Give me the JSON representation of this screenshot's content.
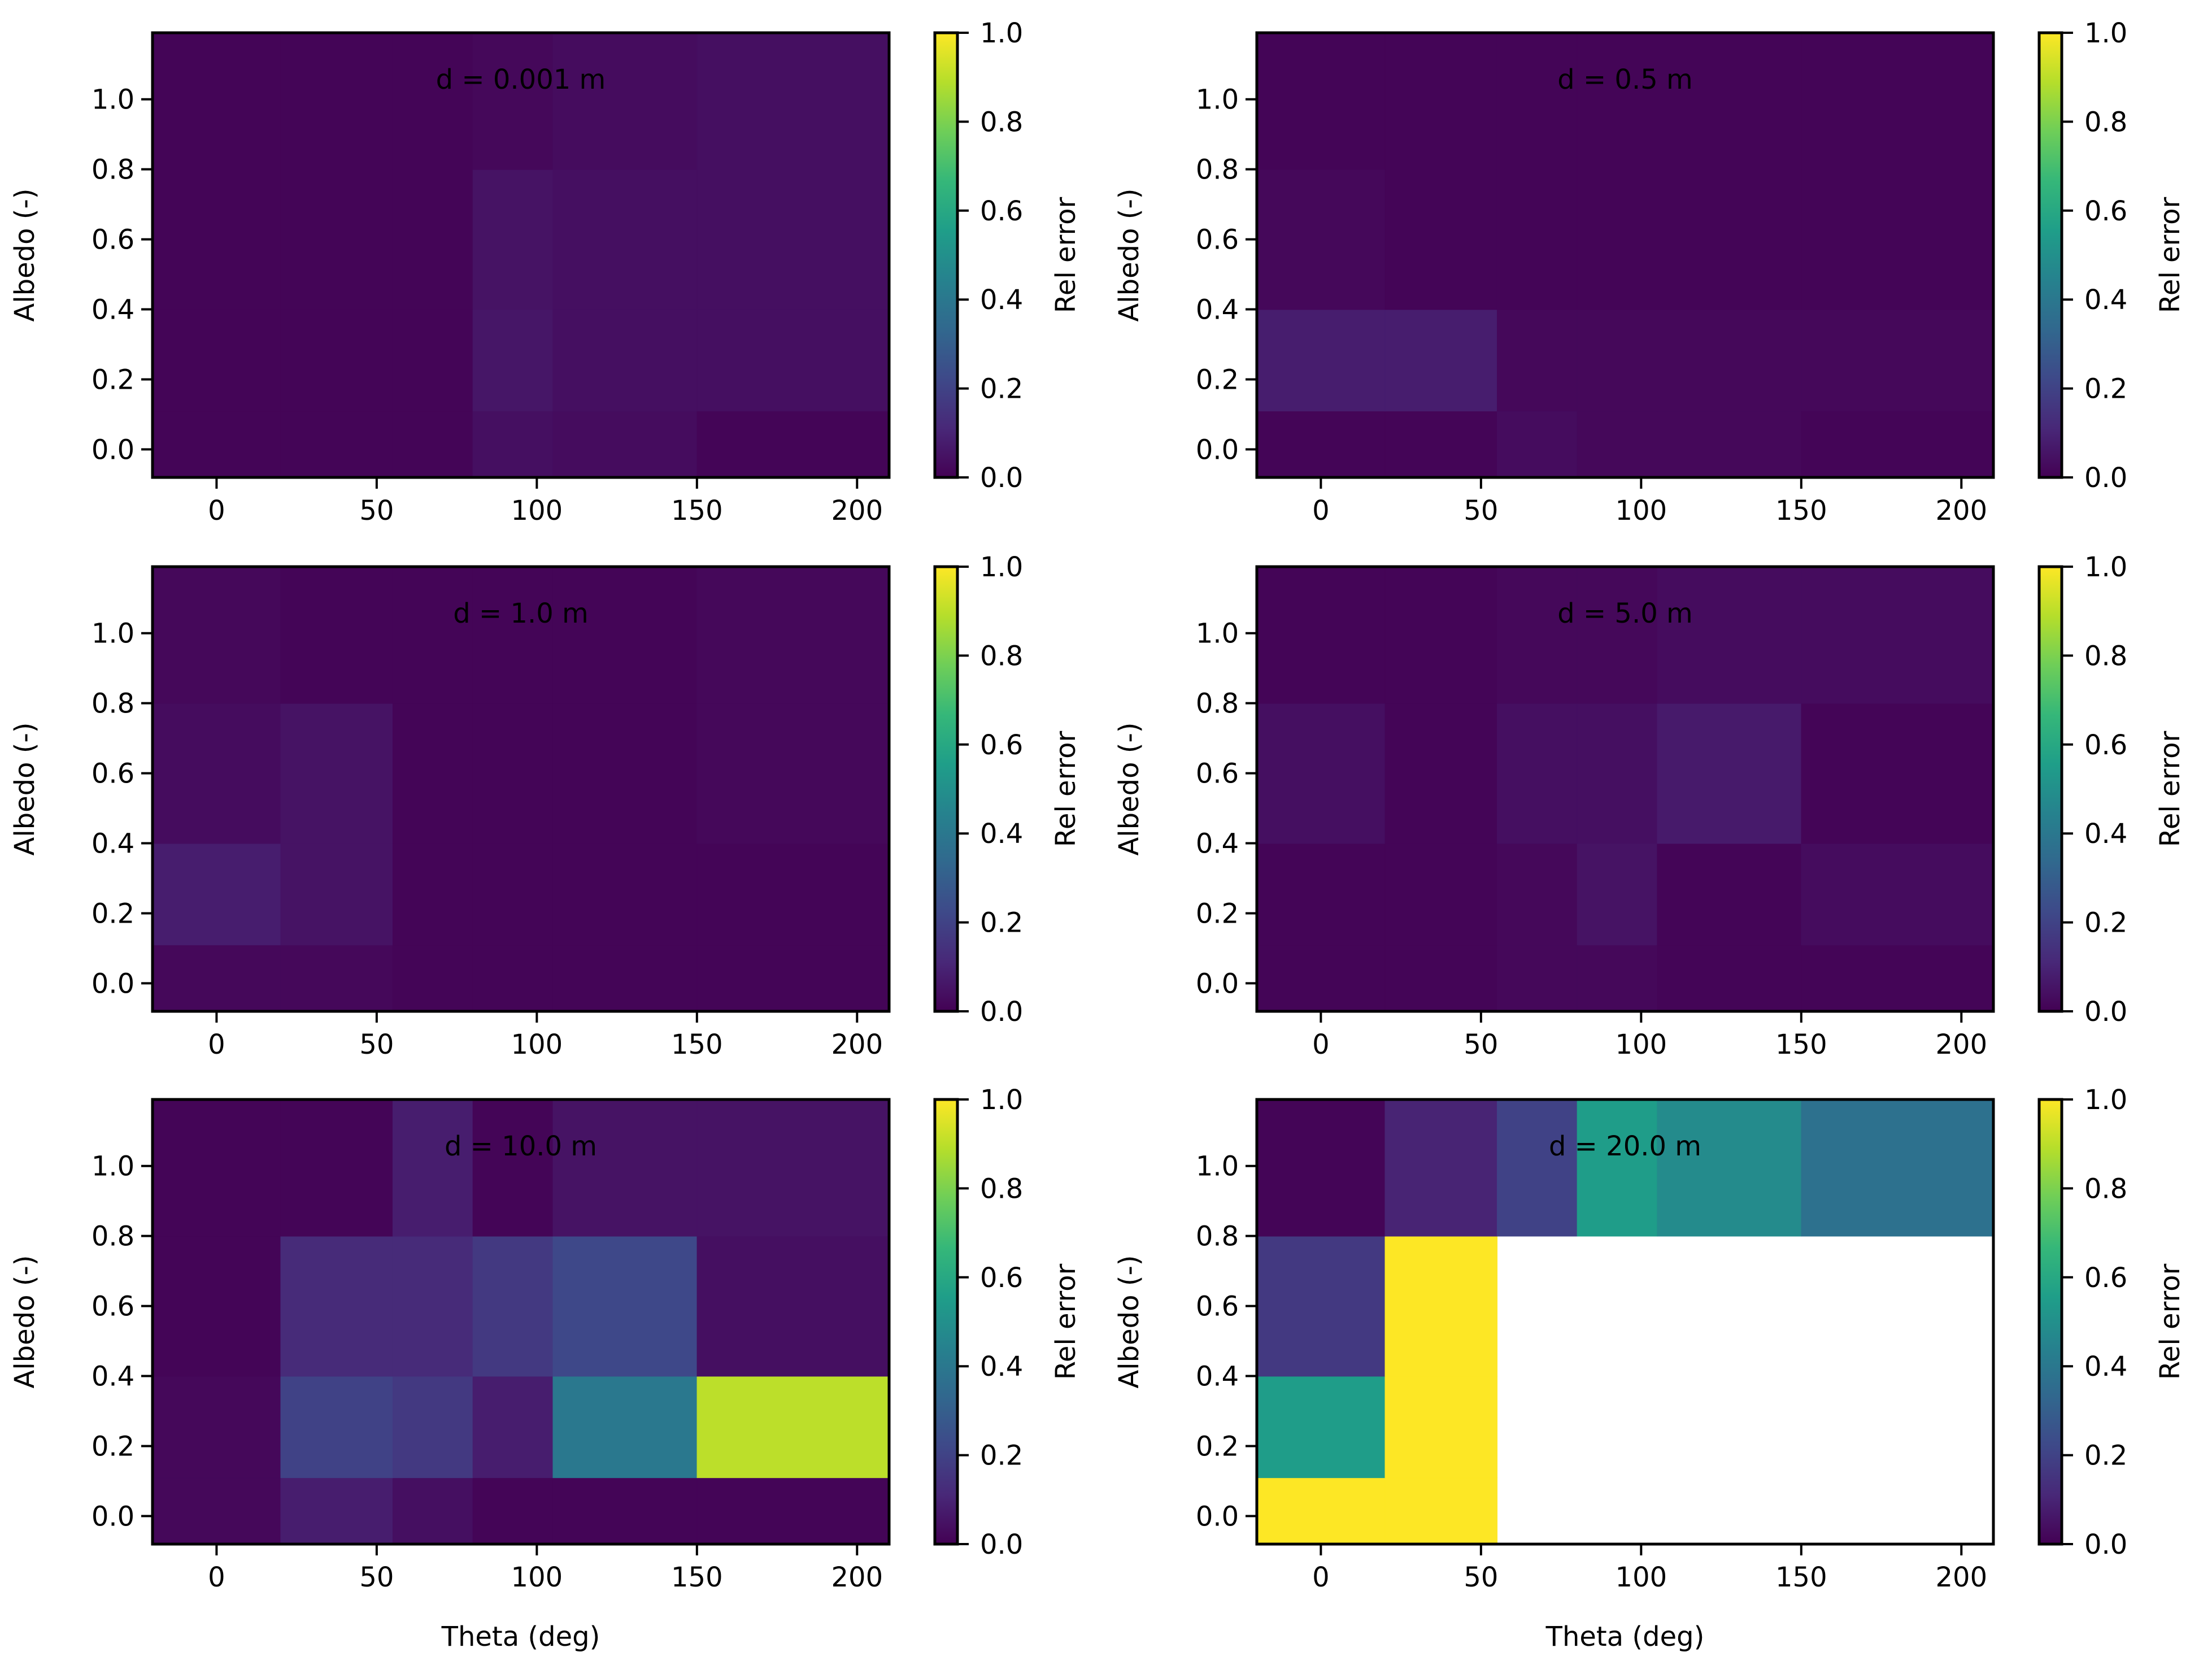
{
  "figure": {
    "xlabel": "Theta (deg)",
    "ylabel": "Albedo (-)",
    "colorbar_label": "Rel error",
    "colorbar_ticks": [
      "0.0",
      "0.2",
      "0.4",
      "0.6",
      "0.8",
      "1.0"
    ],
    "colormap": [
      "#440154",
      "#482878",
      "#3e4989",
      "#31688e",
      "#26828e",
      "#1f9e89",
      "#35b779",
      "#6ece58",
      "#b5de2b",
      "#fde725"
    ],
    "nodata_color": "#ffffff",
    "x_ticks": [
      "0",
      "50",
      "100",
      "150",
      "200"
    ],
    "y_ticks": [
      "0.0",
      "0.2",
      "0.4",
      "0.6",
      "0.8",
      "1.0"
    ]
  },
  "chart_data": [
    {
      "type": "heatmap",
      "title": "d = 0.001 m",
      "xlabel": "Theta (deg)",
      "ylabel": "Albedo (-)",
      "colorbar_label": "Rel error",
      "xlim": [
        -20,
        210
      ],
      "ylim": [
        -0.08,
        1.19
      ],
      "clim": [
        0,
        1
      ],
      "x_edges": [
        -20,
        20,
        55,
        80,
        105,
        150,
        210
      ],
      "y_edges": [
        -0.08,
        0.11,
        0.4,
        0.8,
        1.19
      ],
      "z": [
        [
          0.01,
          0.01,
          0.01,
          0.04,
          0.03,
          0.01
        ],
        [
          0.01,
          0.01,
          0.01,
          0.06,
          0.04,
          0.04
        ],
        [
          0.01,
          0.01,
          0.01,
          0.05,
          0.04,
          0.04
        ],
        [
          0.01,
          0.01,
          0.01,
          0.02,
          0.03,
          0.04
        ]
      ]
    },
    {
      "type": "heatmap",
      "title": "d = 0.5 m",
      "xlabel": "Theta (deg)",
      "ylabel": "Albedo (-)",
      "colorbar_label": "Rel error",
      "xlim": [
        -20,
        210
      ],
      "ylim": [
        -0.08,
        1.19
      ],
      "clim": [
        0,
        1
      ],
      "x_edges": [
        -20,
        20,
        55,
        80,
        105,
        150,
        210
      ],
      "y_edges": [
        -0.08,
        0.11,
        0.4,
        0.8,
        1.19
      ],
      "z": [
        [
          0.01,
          0.01,
          0.03,
          0.02,
          0.02,
          0.01
        ],
        [
          0.08,
          0.08,
          0.02,
          0.02,
          0.02,
          0.02
        ],
        [
          0.02,
          0.01,
          0.01,
          0.01,
          0.01,
          0.01
        ],
        [
          0.01,
          0.01,
          0.01,
          0.01,
          0.01,
          0.01
        ]
      ]
    },
    {
      "type": "heatmap",
      "title": "d = 1.0 m",
      "xlabel": "Theta (deg)",
      "ylabel": "Albedo (-)",
      "colorbar_label": "Rel error",
      "xlim": [
        -20,
        210
      ],
      "ylim": [
        -0.08,
        1.19
      ],
      "clim": [
        0,
        1
      ],
      "x_edges": [
        -20,
        20,
        55,
        80,
        105,
        150,
        210
      ],
      "y_edges": [
        -0.08,
        0.11,
        0.4,
        0.8,
        1.19
      ],
      "z": [
        [
          0.02,
          0.02,
          0.01,
          0.01,
          0.01,
          0.01
        ],
        [
          0.08,
          0.05,
          0.01,
          0.01,
          0.01,
          0.01
        ],
        [
          0.03,
          0.05,
          0.01,
          0.01,
          0.01,
          0.02
        ],
        [
          0.02,
          0.01,
          0.01,
          0.01,
          0.01,
          0.02
        ]
      ]
    },
    {
      "type": "heatmap",
      "title": "d = 5.0 m",
      "xlabel": "Theta (deg)",
      "ylabel": "Albedo (-)",
      "colorbar_label": "Rel error",
      "xlim": [
        -20,
        210
      ],
      "ylim": [
        -0.08,
        1.19
      ],
      "clim": [
        0,
        1
      ],
      "x_edges": [
        -20,
        20,
        55,
        80,
        105,
        150,
        210
      ],
      "y_edges": [
        -0.08,
        0.11,
        0.4,
        0.8,
        1.19
      ],
      "z": [
        [
          0.01,
          0.01,
          0.02,
          0.02,
          0.01,
          0.01
        ],
        [
          0.01,
          0.01,
          0.02,
          0.05,
          0.01,
          0.03
        ],
        [
          0.04,
          0.01,
          0.04,
          0.04,
          0.07,
          0.01
        ],
        [
          0.01,
          0.01,
          0.02,
          0.02,
          0.03,
          0.03
        ]
      ]
    },
    {
      "type": "heatmap",
      "title": "d = 10.0 m",
      "xlabel": "Theta (deg)",
      "ylabel": "Albedo (-)",
      "colorbar_label": "Rel error",
      "xlim": [
        -20,
        210
      ],
      "ylim": [
        -0.08,
        1.19
      ],
      "clim": [
        0,
        1
      ],
      "x_edges": [
        -20,
        20,
        55,
        80,
        105,
        150,
        210
      ],
      "y_edges": [
        -0.08,
        0.11,
        0.4,
        0.8,
        1.19
      ],
      "z": [
        [
          0.02,
          0.08,
          0.04,
          0.01,
          0.01,
          0.01
        ],
        [
          0.02,
          0.2,
          0.17,
          0.08,
          0.4,
          0.9
        ],
        [
          0.01,
          0.12,
          0.12,
          0.17,
          0.22,
          0.04
        ],
        [
          0.01,
          0.01,
          0.08,
          0.01,
          0.05,
          0.05
        ]
      ]
    },
    {
      "type": "heatmap",
      "title": "d = 20.0 m",
      "xlabel": "Theta (deg)",
      "ylabel": "Albedo (-)",
      "colorbar_label": "Rel error",
      "xlim": [
        -20,
        210
      ],
      "ylim": [
        -0.08,
        1.19
      ],
      "clim": [
        0,
        1
      ],
      "x_edges": [
        -20,
        20,
        55,
        80,
        105,
        150,
        210
      ],
      "y_edges": [
        -0.08,
        0.11,
        0.4,
        0.8,
        1.19
      ],
      "z": [
        [
          1.0,
          1.0,
          null,
          null,
          null,
          null
        ],
        [
          0.55,
          1.0,
          null,
          null,
          null,
          null
        ],
        [
          0.17,
          1.0,
          null,
          null,
          null,
          null
        ],
        [
          0.01,
          0.1,
          0.2,
          0.55,
          0.48,
          0.37
        ]
      ]
    }
  ]
}
